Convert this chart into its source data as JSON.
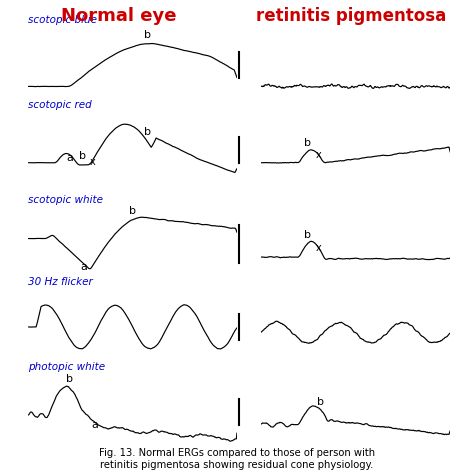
{
  "title_left": "Normal eye",
  "title_right": "retinitis pigmentosa",
  "title_left_color": "#cc0000",
  "title_right_color": "#cc0000",
  "label_color": "#0000cc",
  "background_color": "#ffffff",
  "caption": "Fig. 13. Normal ERGs compared to those of person with\nretinitis pigmentosa showing residual cone physiology.",
  "rows": [
    {
      "label": "scotopic blue"
    },
    {
      "label": "scotopic red"
    },
    {
      "label": "scotopic white"
    },
    {
      "label": "30 Hz flicker"
    },
    {
      "label": "photopic white"
    }
  ]
}
